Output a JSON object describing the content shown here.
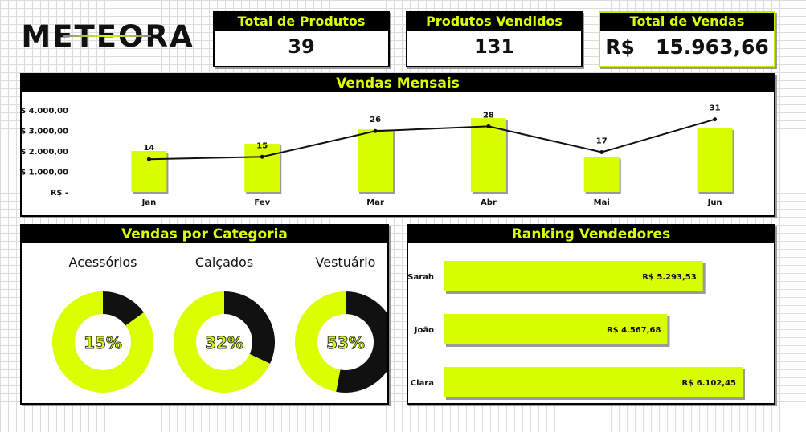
{
  "brand": {
    "logo_text": "METEORA"
  },
  "kpis": [
    {
      "label": "Total de Produtos",
      "value": "39"
    },
    {
      "label": "Produtos Vendidos",
      "value": "131"
    },
    {
      "label": "Total de Vendas",
      "value": "R$   15.963,66"
    }
  ],
  "colors": {
    "accent": "#dcff00",
    "dark": "#000000",
    "bar": "#d8ff00"
  },
  "chart_data": [
    {
      "type": "bar",
      "title": "Vendas Mensais",
      "categories": [
        "Jan",
        "Fev",
        "Mar",
        "Abr",
        "Mai",
        "Jun"
      ],
      "series": [
        {
          "values": [
            2000,
            2350,
            3050,
            3600,
            1700,
            3100
          ]
        },
        {
          "type": "line",
          "values": [
            14,
            15,
            26,
            28,
            17,
            31
          ]
        }
      ],
      "data_labels": [
        "14",
        "15",
        "26",
        "28",
        "17",
        "31"
      ],
      "y_ticks": [
        "R$ -",
        "R$ 1.000,00",
        "R$ 2.000,00",
        "R$ 3.000,00",
        "R$ 4.000,00"
      ],
      "ylim": [
        0,
        4000
      ]
    },
    {
      "type": "pie",
      "title": "Vendas por Categoria",
      "donuts": [
        {
          "label": "Acessórios",
          "percent": 15,
          "percent_label": "15%"
        },
        {
          "label": "Calçados",
          "percent": 32,
          "percent_label": "32%"
        },
        {
          "label": "Vestuário",
          "percent": 53,
          "percent_label": "53%"
        }
      ]
    },
    {
      "type": "bar",
      "title": "Ranking Vendedores",
      "orientation": "horizontal",
      "categories": [
        "Sarah",
        "João",
        "Clara"
      ],
      "values": [
        5293.53,
        4567.68,
        6102.45
      ],
      "value_labels": [
        "R$ 5.293,53",
        "R$ 4.567,68",
        "R$ 6.102,45"
      ],
      "xlim": [
        0,
        7000
      ]
    }
  ]
}
